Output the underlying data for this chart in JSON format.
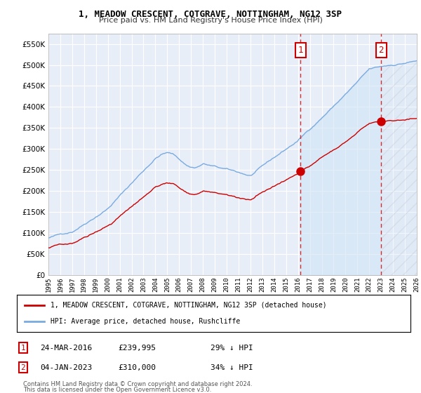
{
  "title": "1, MEADOW CRESCENT, COTGRAVE, NOTTINGHAM, NG12 3SP",
  "subtitle": "Price paid vs. HM Land Registry's House Price Index (HPI)",
  "hpi_color": "#7aabe0",
  "hpi_fill_color": "#d0e4f5",
  "price_color": "#cc0000",
  "marker1_date": 2016.22,
  "marker2_date": 2023.01,
  "legend_line1": "1, MEADOW CRESCENT, COTGRAVE, NOTTINGHAM, NG12 3SP (detached house)",
  "legend_line2": "HPI: Average price, detached house, Rushcliffe",
  "footer1": "Contains HM Land Registry data © Crown copyright and database right 2024.",
  "footer2": "This data is licensed under the Open Government Licence v3.0.",
  "row1_num": "1",
  "row1_date": "24-MAR-2016",
  "row1_price": "£239,995",
  "row1_hpi": "29% ↓ HPI",
  "row2_num": "2",
  "row2_date": "04-JAN-2023",
  "row2_price": "£310,000",
  "row2_hpi": "34% ↓ HPI",
  "ylim": [
    0,
    575000
  ],
  "yticks": [
    0,
    50000,
    100000,
    150000,
    200000,
    250000,
    300000,
    350000,
    400000,
    450000,
    500000,
    550000
  ],
  "xstart": 1995,
  "xend": 2026,
  "bg_color": "#e8eef8",
  "grid_color": "#ffffff"
}
